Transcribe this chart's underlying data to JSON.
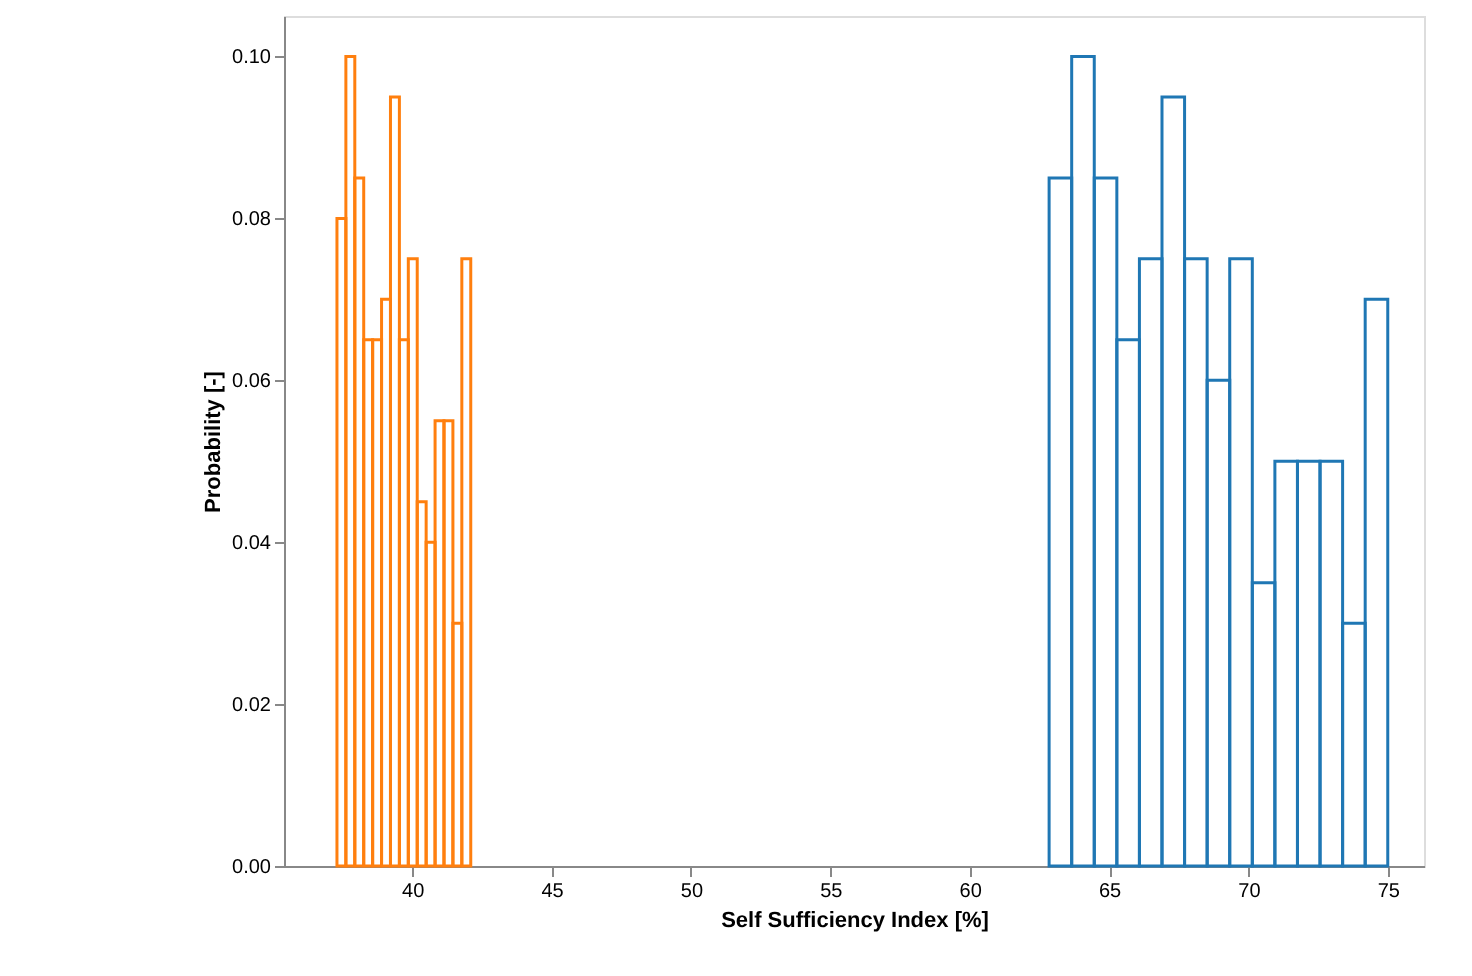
{
  "chart_data": {
    "type": "histogram",
    "xlabel": "Self Sufficiency Index [%]",
    "ylabel": "Probability [-]",
    "xlim": [
      35.4,
      76.3
    ],
    "xticks": [
      40,
      45,
      50,
      55,
      60,
      65,
      70,
      75
    ],
    "ylim": [
      0,
      0.105
    ],
    "yticks": [
      {
        "value": 0,
        "label": "0.00"
      },
      0.02,
      0.04,
      0.06,
      0.08,
      {
        "value": 0.1,
        "label": "0.10"
      }
    ],
    "bins": [
      37.3,
      37.62,
      37.94,
      38.26,
      38.58,
      38.9,
      39.22,
      39.54,
      39.86,
      40.18,
      40.5,
      40.82,
      41.14,
      41.46,
      41.78,
      42.1,
      62.85,
      63.66,
      64.47,
      65.28,
      66.09,
      66.9,
      67.71,
      68.52,
      69.33,
      70.14,
      70.95,
      71.76,
      72.57,
      73.38,
      74.19,
      75.0
    ],
    "values": [
      0.08,
      0.1,
      0.085,
      0.065,
      0.065,
      0.07,
      0.095,
      0.065,
      0.075,
      0.045,
      0.04,
      0.055,
      0.055,
      0.03,
      0.075,
      null,
      0.085,
      0.1,
      0.085,
      0.065,
      0.075,
      0.095,
      0.075,
      0.06,
      0.075,
      0.035,
      0.05,
      0.05,
      0.05,
      0.03,
      0.07
    ],
    "colors": [
      "#ff7f0e",
      "#ff7f0e",
      "#ff7f0e",
      "#ff7f0e",
      "#ff7f0e",
      "#ff7f0e",
      "#ff7f0e",
      "#ff7f0e",
      "#ff7f0e",
      "#ff7f0e",
      "#ff7f0e",
      "#ff7f0e",
      "#ff7f0e",
      "#ff7f0e",
      "#ff7f0e",
      null,
      "#1f77b4",
      "#1f77b4",
      "#1f77b4",
      "#1f77b4",
      "#1f77b4",
      "#1f77b4",
      "#1f77b4",
      "#1f77b4",
      "#1f77b4",
      "#1f77b4",
      "#1f77b4",
      "#1f77b4",
      "#1f77b4",
      "#1f77b4",
      "#1f77b4"
    ]
  }
}
